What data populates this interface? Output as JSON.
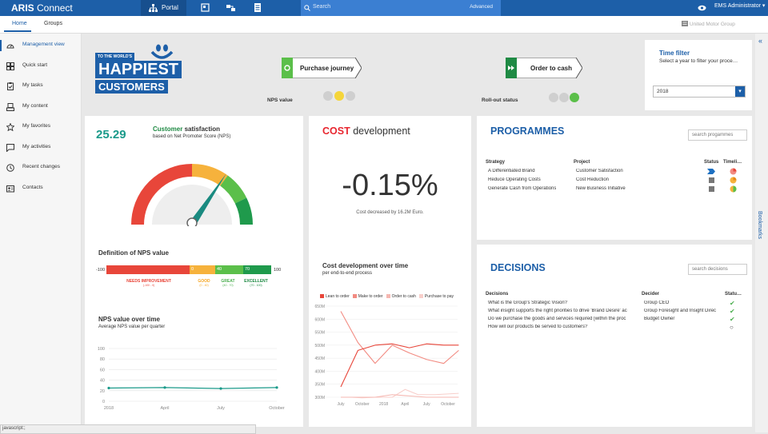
{
  "header": {
    "brand_bold": "ARIS",
    "brand_light": "Connect",
    "portal_label": "Portal",
    "search_placeholder": "Search",
    "search_advanced": "Advanced",
    "user_name": "EMS Administrator",
    "colors": {
      "bar": "#1d5fa8",
      "search": "#3b7fd2"
    }
  },
  "tabs": [
    {
      "label": "Home",
      "active": true
    },
    {
      "label": "Groups",
      "active": false
    }
  ],
  "org_label": "United Motor Group",
  "sidebar": {
    "items": [
      {
        "label": "Management view",
        "icon": "speedometer-icon"
      },
      {
        "label": "Quick start",
        "icon": "grid-icon"
      },
      {
        "label": "My tasks",
        "icon": "clipboard-icon"
      },
      {
        "label": "My content",
        "icon": "tray-icon"
      },
      {
        "label": "My favorites",
        "icon": "star-icon"
      },
      {
        "label": "My activities",
        "icon": "comment-icon"
      },
      {
        "label": "Recent changes",
        "icon": "history-icon"
      },
      {
        "label": "Contacts",
        "icon": "contacts-icon"
      }
    ]
  },
  "bookmarks_label": "Bookmarks",
  "hero": {
    "logo_line1": "TO THE WORLD'S",
    "logo_line2": "HAPPIEST",
    "logo_line3": "CUSTOMERS",
    "purchase_journey": "Purchase journey",
    "order_to_cash": "Order to cash",
    "nps_value_label": "NPS value",
    "rollout_label": "Roll-out status",
    "nps_lights": [
      "#cfcfcf",
      "#f5d53a",
      "#cfcfcf"
    ],
    "rollout_lights": [
      "#cfcfcf",
      "#cfcfcf",
      "#5bbf4a"
    ]
  },
  "time_filter": {
    "title": "Time filter",
    "subtitle": "Select a year to filter your proce…",
    "selected": "2018"
  },
  "nps": {
    "score": "25.29",
    "title_bold": "Customer",
    "title_rest": " satisfaction",
    "subtitle": "based on Net Promoter Score (NPS)",
    "gauge_value": 25.29,
    "definition_title": "Definition of NPS value",
    "scale_min": "-100",
    "scale_max": "100",
    "segments": [
      {
        "value": "",
        "color": "#e8463a"
      },
      {
        "value": "0",
        "color": "#f6b23c"
      },
      {
        "value": "40",
        "color": "#5bbf4a"
      },
      {
        "value": "70",
        "color": "#1f9a4c"
      }
    ],
    "legend": [
      {
        "label": "NEEDS IMPROVEMENT",
        "range": "(-100 - 0)",
        "color": "#e8463a"
      },
      {
        "label": "GOOD",
        "range": "(0 - 40)",
        "color": "#f6a623"
      },
      {
        "label": "GREAT",
        "range": "(40 - 70)",
        "color": "#4caf50"
      },
      {
        "label": "EXCELLENT",
        "range": "(70 - 100)",
        "color": "#1f8a44"
      }
    ],
    "chart_title": "NPS value over time",
    "chart_subtitle": "Average NPS value per quarter"
  },
  "cost": {
    "title_red": "COST",
    "title_rest": " development",
    "big_value": "-0.15%",
    "caption": "Cost decreased by 16.2M Euro.",
    "chart_title": "Cost development over time",
    "chart_subtitle": "per end-to-end process"
  },
  "programmes": {
    "title": "PROGRAMMES",
    "search_placeholder": "search progammes",
    "columns": [
      "Strategy",
      "Project",
      "Status",
      "Timeli…"
    ],
    "rows": [
      {
        "strategy": "A Differentiated Brand",
        "project": "Customer Satisfaction"
      },
      {
        "strategy": "Reduce Operating Costs",
        "project": "Cost Reduction"
      },
      {
        "strategy": "Generate Cash from Operations",
        "project": "New Business Initiative"
      }
    ]
  },
  "decisions": {
    "title": "DECISIONS",
    "search_placeholder": "search decisions",
    "columns": [
      "Decisions",
      "Decider",
      "Statu…"
    ],
    "rows": [
      {
        "decision": "What is the Group's Strategic Vision?",
        "decider": "Group CEO",
        "status": "done"
      },
      {
        "decision": "What insight supports the right priorities to drive 'Brand Desire' ac",
        "decider": "Group Foresight and Insight Direc",
        "status": "done"
      },
      {
        "decision": "Do we purchase the goods and services required [within the proc",
        "decider": "Budget Owner",
        "status": "done"
      },
      {
        "decision": "How will our products be served to customers?",
        "decider": "",
        "status": "open"
      }
    ]
  },
  "status_bar": "javascript:;",
  "chart_data": [
    {
      "type": "line",
      "title": "NPS value over time",
      "subtitle": "Average NPS value per quarter",
      "categories": [
        "2018",
        "April",
        "July",
        "October"
      ],
      "ylim": [
        0,
        100
      ],
      "yticks": [
        "0",
        "20",
        "40",
        "60",
        "80",
        "100"
      ],
      "grid": true,
      "series": [
        {
          "color": "#1a9a8a",
          "values": [
            25,
            26,
            24,
            26
          ]
        }
      ]
    },
    {
      "type": "line",
      "title": "Cost development over time",
      "subtitle": "per end-to-end process",
      "legend_position": "top",
      "categories": [
        "July",
        "October",
        "2018",
        "April",
        "July",
        "October"
      ],
      "ylim": [
        300,
        650
      ],
      "yticks": [
        "300M",
        "350M",
        "400M",
        "450M",
        "500M",
        "550M",
        "600M",
        "650M"
      ],
      "grid": true,
      "series": [
        {
          "name": "Lean to order",
          "color": "#e8463a",
          "x": [
            0,
            0.8,
            1.6,
            2.4,
            3.2,
            4,
            4.8,
            5.5
          ],
          "values": [
            340,
            480,
            500,
            505,
            490,
            505,
            500,
            500
          ]
        },
        {
          "name": "Make to order",
          "color": "#f28b82",
          "x": [
            0,
            0.8,
            1.6,
            2.4,
            3.2,
            4,
            4.8,
            5.5
          ],
          "values": [
            630,
            510,
            430,
            500,
            470,
            445,
            430,
            480
          ]
        },
        {
          "name": "Order to cash",
          "color": "#f5b7b1",
          "x": [
            0,
            0.5,
            1,
            1.6,
            2.4,
            3.2,
            4,
            4.8,
            5.5
          ],
          "values": [
            300,
            300,
            300,
            300,
            310,
            305,
            300,
            300,
            300
          ]
        },
        {
          "name": "Purchase to pay",
          "color": "#f8cfcb",
          "x": [
            0,
            0.5,
            1,
            1.6,
            2.4,
            3,
            3.6,
            4.4,
            5.5
          ],
          "values": [
            300,
            300,
            298,
            300,
            300,
            330,
            310,
            310,
            315
          ]
        }
      ]
    }
  ]
}
